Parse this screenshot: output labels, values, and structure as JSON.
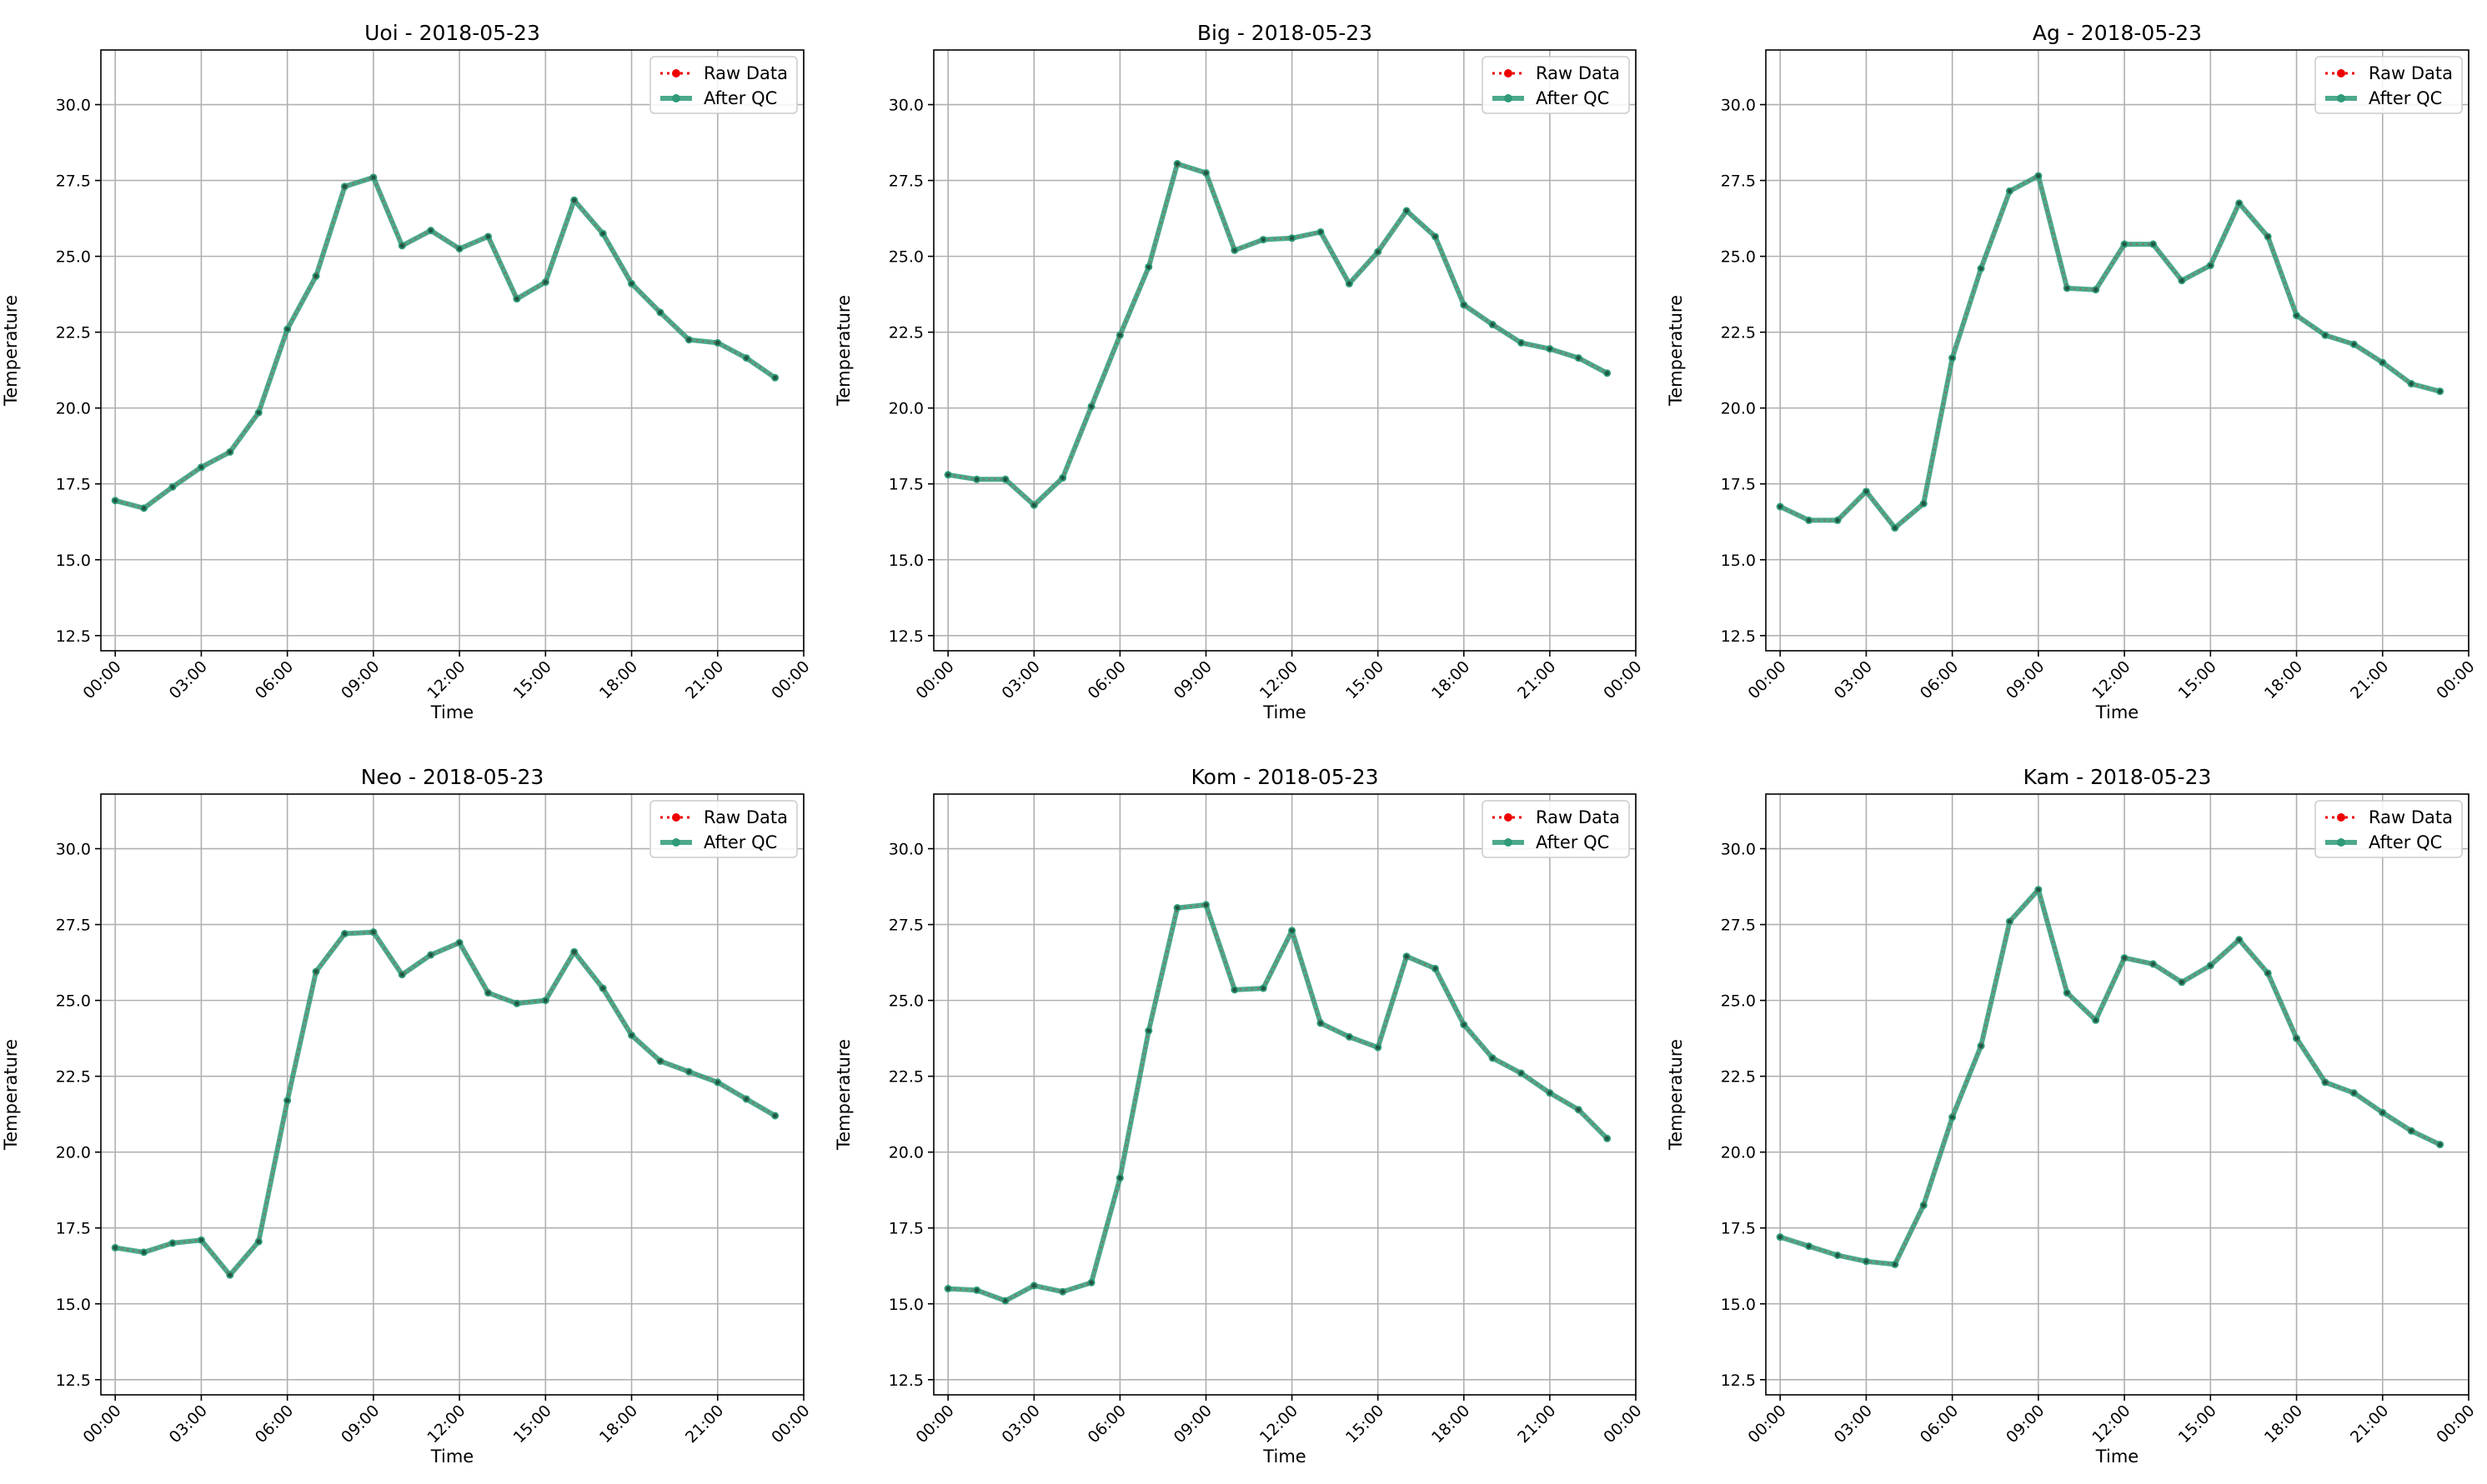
{
  "figure": {
    "x_tick_labels": [
      "00:00",
      "03:00",
      "06:00",
      "09:00",
      "12:00",
      "15:00",
      "18:00",
      "21:00",
      "00:00"
    ],
    "y_tick_labels": [
      "12.5",
      "15.0",
      "17.5",
      "20.0",
      "22.5",
      "25.0",
      "27.5",
      "30.0"
    ],
    "legend": {
      "raw": "Raw Data",
      "qc": "After QC",
      "placement": "upper right"
    },
    "colors": {
      "raw": "#ee0000",
      "qc": "#2e9a78",
      "grid": "#b0b0b0"
    }
  },
  "chart_data": [
    {
      "type": "line",
      "title": "Uoi - 2018-05-23",
      "xlabel": "Time",
      "ylabel": "Temperature",
      "x_unit": "hour",
      "xlim": [
        -0.5,
        24
      ],
      "ylim": [
        12,
        31.8
      ],
      "y_ticks": [
        12.5,
        15,
        17.5,
        20,
        22.5,
        25,
        27.5,
        30
      ],
      "x_ticks": [
        0,
        3,
        6,
        9,
        12,
        15,
        18,
        21,
        24
      ],
      "grid": true,
      "x": [
        0,
        1,
        2,
        3,
        4,
        5,
        6,
        7,
        8,
        9,
        10,
        11,
        12,
        13,
        14,
        15,
        16,
        17,
        18,
        19,
        20,
        21,
        22,
        23
      ],
      "series": [
        {
          "name": "Raw Data",
          "values": [
            16.95,
            16.7,
            17.4,
            18.05,
            18.55,
            19.85,
            22.6,
            24.35,
            27.3,
            27.6,
            25.35,
            25.85,
            25.25,
            25.65,
            23.6,
            24.15,
            26.85,
            25.75,
            24.1,
            23.15,
            22.25,
            22.15,
            21.65,
            21.0
          ]
        },
        {
          "name": "After QC",
          "values": [
            16.95,
            16.7,
            17.4,
            18.05,
            18.55,
            19.85,
            22.6,
            24.35,
            27.3,
            27.6,
            25.35,
            25.85,
            25.25,
            25.65,
            23.6,
            24.15,
            26.85,
            25.75,
            24.1,
            23.15,
            22.25,
            22.15,
            21.65,
            21.0
          ]
        }
      ]
    },
    {
      "type": "line",
      "title": "Big - 2018-05-23",
      "xlabel": "Time",
      "ylabel": "Temperature",
      "x_unit": "hour",
      "xlim": [
        -0.5,
        24
      ],
      "ylim": [
        12,
        31.8
      ],
      "y_ticks": [
        12.5,
        15,
        17.5,
        20,
        22.5,
        25,
        27.5,
        30
      ],
      "x_ticks": [
        0,
        3,
        6,
        9,
        12,
        15,
        18,
        21,
        24
      ],
      "grid": true,
      "x": [
        0,
        1,
        2,
        3,
        4,
        5,
        6,
        7,
        8,
        9,
        10,
        11,
        12,
        13,
        14,
        15,
        16,
        17,
        18,
        19,
        20,
        21,
        22,
        23
      ],
      "series": [
        {
          "name": "Raw Data",
          "values": [
            17.8,
            17.65,
            17.65,
            16.8,
            17.7,
            20.05,
            22.4,
            24.65,
            28.05,
            27.75,
            25.2,
            25.55,
            25.6,
            25.8,
            24.1,
            25.15,
            26.5,
            25.65,
            23.4,
            22.75,
            22.15,
            21.95,
            21.65,
            21.15
          ]
        },
        {
          "name": "After QC",
          "values": [
            17.8,
            17.65,
            17.65,
            16.8,
            17.7,
            20.05,
            22.4,
            24.65,
            28.05,
            27.75,
            25.2,
            25.55,
            25.6,
            25.8,
            24.1,
            25.15,
            26.5,
            25.65,
            23.4,
            22.75,
            22.15,
            21.95,
            21.65,
            21.15
          ]
        }
      ]
    },
    {
      "type": "line",
      "title": "Ag - 2018-05-23",
      "xlabel": "Time",
      "ylabel": "Temperature",
      "x_unit": "hour",
      "xlim": [
        -0.5,
        24
      ],
      "ylim": [
        12,
        31.8
      ],
      "y_ticks": [
        12.5,
        15,
        17.5,
        20,
        22.5,
        25,
        27.5,
        30
      ],
      "x_ticks": [
        0,
        3,
        6,
        9,
        12,
        15,
        18,
        21,
        24
      ],
      "grid": true,
      "x": [
        0,
        1,
        2,
        3,
        4,
        5,
        6,
        7,
        8,
        9,
        10,
        11,
        12,
        13,
        14,
        15,
        16,
        17,
        18,
        19,
        20,
        21,
        22,
        23
      ],
      "series": [
        {
          "name": "Raw Data",
          "values": [
            16.75,
            16.3,
            16.3,
            17.25,
            16.05,
            16.85,
            21.65,
            24.6,
            27.15,
            27.65,
            23.95,
            23.9,
            25.4,
            25.4,
            24.2,
            24.7,
            26.75,
            25.65,
            23.05,
            22.4,
            22.1,
            21.5,
            20.8,
            20.55
          ]
        },
        {
          "name": "After QC",
          "values": [
            16.75,
            16.3,
            16.3,
            17.25,
            16.05,
            16.85,
            21.65,
            24.6,
            27.15,
            27.65,
            23.95,
            23.9,
            25.4,
            25.4,
            24.2,
            24.7,
            26.75,
            25.65,
            23.05,
            22.4,
            22.1,
            21.5,
            20.8,
            20.55
          ]
        }
      ]
    },
    {
      "type": "line",
      "title": "Neo - 2018-05-23",
      "xlabel": "Time",
      "ylabel": "Temperature",
      "x_unit": "hour",
      "xlim": [
        -0.5,
        24
      ],
      "ylim": [
        12,
        31.8
      ],
      "y_ticks": [
        12.5,
        15,
        17.5,
        20,
        22.5,
        25,
        27.5,
        30
      ],
      "x_ticks": [
        0,
        3,
        6,
        9,
        12,
        15,
        18,
        21,
        24
      ],
      "grid": true,
      "x": [
        0,
        1,
        2,
        3,
        4,
        5,
        6,
        7,
        8,
        9,
        10,
        11,
        12,
        13,
        14,
        15,
        16,
        17,
        18,
        19,
        20,
        21,
        22,
        23
      ],
      "series": [
        {
          "name": "Raw Data",
          "values": [
            16.85,
            16.7,
            17.0,
            17.1,
            15.95,
            17.05,
            21.7,
            25.95,
            27.2,
            27.25,
            25.85,
            26.5,
            26.9,
            25.25,
            24.9,
            25.0,
            26.6,
            25.4,
            23.85,
            23.0,
            22.65,
            22.3,
            21.75,
            21.2
          ]
        },
        {
          "name": "After QC",
          "values": [
            16.85,
            16.7,
            17.0,
            17.1,
            15.95,
            17.05,
            21.7,
            25.95,
            27.2,
            27.25,
            25.85,
            26.5,
            26.9,
            25.25,
            24.9,
            25.0,
            26.6,
            25.4,
            23.85,
            23.0,
            22.65,
            22.3,
            21.75,
            21.2
          ]
        }
      ]
    },
    {
      "type": "line",
      "title": "Kom - 2018-05-23",
      "xlabel": "Time",
      "ylabel": "Temperature",
      "x_unit": "hour",
      "xlim": [
        -0.5,
        24
      ],
      "ylim": [
        12,
        31.8
      ],
      "y_ticks": [
        12.5,
        15,
        17.5,
        20,
        22.5,
        25,
        27.5,
        30
      ],
      "x_ticks": [
        0,
        3,
        6,
        9,
        12,
        15,
        18,
        21,
        24
      ],
      "grid": true,
      "x": [
        0,
        1,
        2,
        3,
        4,
        5,
        6,
        7,
        8,
        9,
        10,
        11,
        12,
        13,
        14,
        15,
        16,
        17,
        18,
        19,
        20,
        21,
        22,
        23
      ],
      "series": [
        {
          "name": "Raw Data",
          "values": [
            15.5,
            15.45,
            15.1,
            15.6,
            15.4,
            15.7,
            19.15,
            24.0,
            28.05,
            28.15,
            25.35,
            25.4,
            27.3,
            24.25,
            23.8,
            23.45,
            26.45,
            26.05,
            24.2,
            23.1,
            22.6,
            21.95,
            21.4,
            20.45
          ]
        },
        {
          "name": "After QC",
          "values": [
            15.5,
            15.45,
            15.1,
            15.6,
            15.4,
            15.7,
            19.15,
            24.0,
            28.05,
            28.15,
            25.35,
            25.4,
            27.3,
            24.25,
            23.8,
            23.45,
            26.45,
            26.05,
            24.2,
            23.1,
            22.6,
            21.95,
            21.4,
            20.45
          ]
        }
      ]
    },
    {
      "type": "line",
      "title": "Kam - 2018-05-23",
      "xlabel": "Time",
      "ylabel": "Temperature",
      "x_unit": "hour",
      "xlim": [
        -0.5,
        24
      ],
      "ylim": [
        12,
        31.8
      ],
      "y_ticks": [
        12.5,
        15,
        17.5,
        20,
        22.5,
        25,
        27.5,
        30
      ],
      "x_ticks": [
        0,
        3,
        6,
        9,
        12,
        15,
        18,
        21,
        24
      ],
      "grid": true,
      "x": [
        0,
        1,
        2,
        3,
        4,
        5,
        6,
        7,
        8,
        9,
        10,
        11,
        12,
        13,
        14,
        15,
        16,
        17,
        18,
        19,
        20,
        21,
        22,
        23
      ],
      "series": [
        {
          "name": "Raw Data",
          "values": [
            17.2,
            16.9,
            16.6,
            16.4,
            16.3,
            18.25,
            21.15,
            23.5,
            27.6,
            28.65,
            25.25,
            24.35,
            26.4,
            26.2,
            25.6,
            26.15,
            27.0,
            25.9,
            23.75,
            22.3,
            21.95,
            21.3,
            20.7,
            20.25
          ]
        },
        {
          "name": "After QC",
          "values": [
            17.2,
            16.9,
            16.6,
            16.4,
            16.3,
            18.25,
            21.15,
            23.5,
            27.6,
            28.65,
            25.25,
            24.35,
            26.4,
            26.2,
            25.6,
            26.15,
            27.0,
            25.9,
            23.75,
            22.3,
            21.95,
            21.3,
            20.7,
            20.25
          ]
        }
      ]
    }
  ]
}
